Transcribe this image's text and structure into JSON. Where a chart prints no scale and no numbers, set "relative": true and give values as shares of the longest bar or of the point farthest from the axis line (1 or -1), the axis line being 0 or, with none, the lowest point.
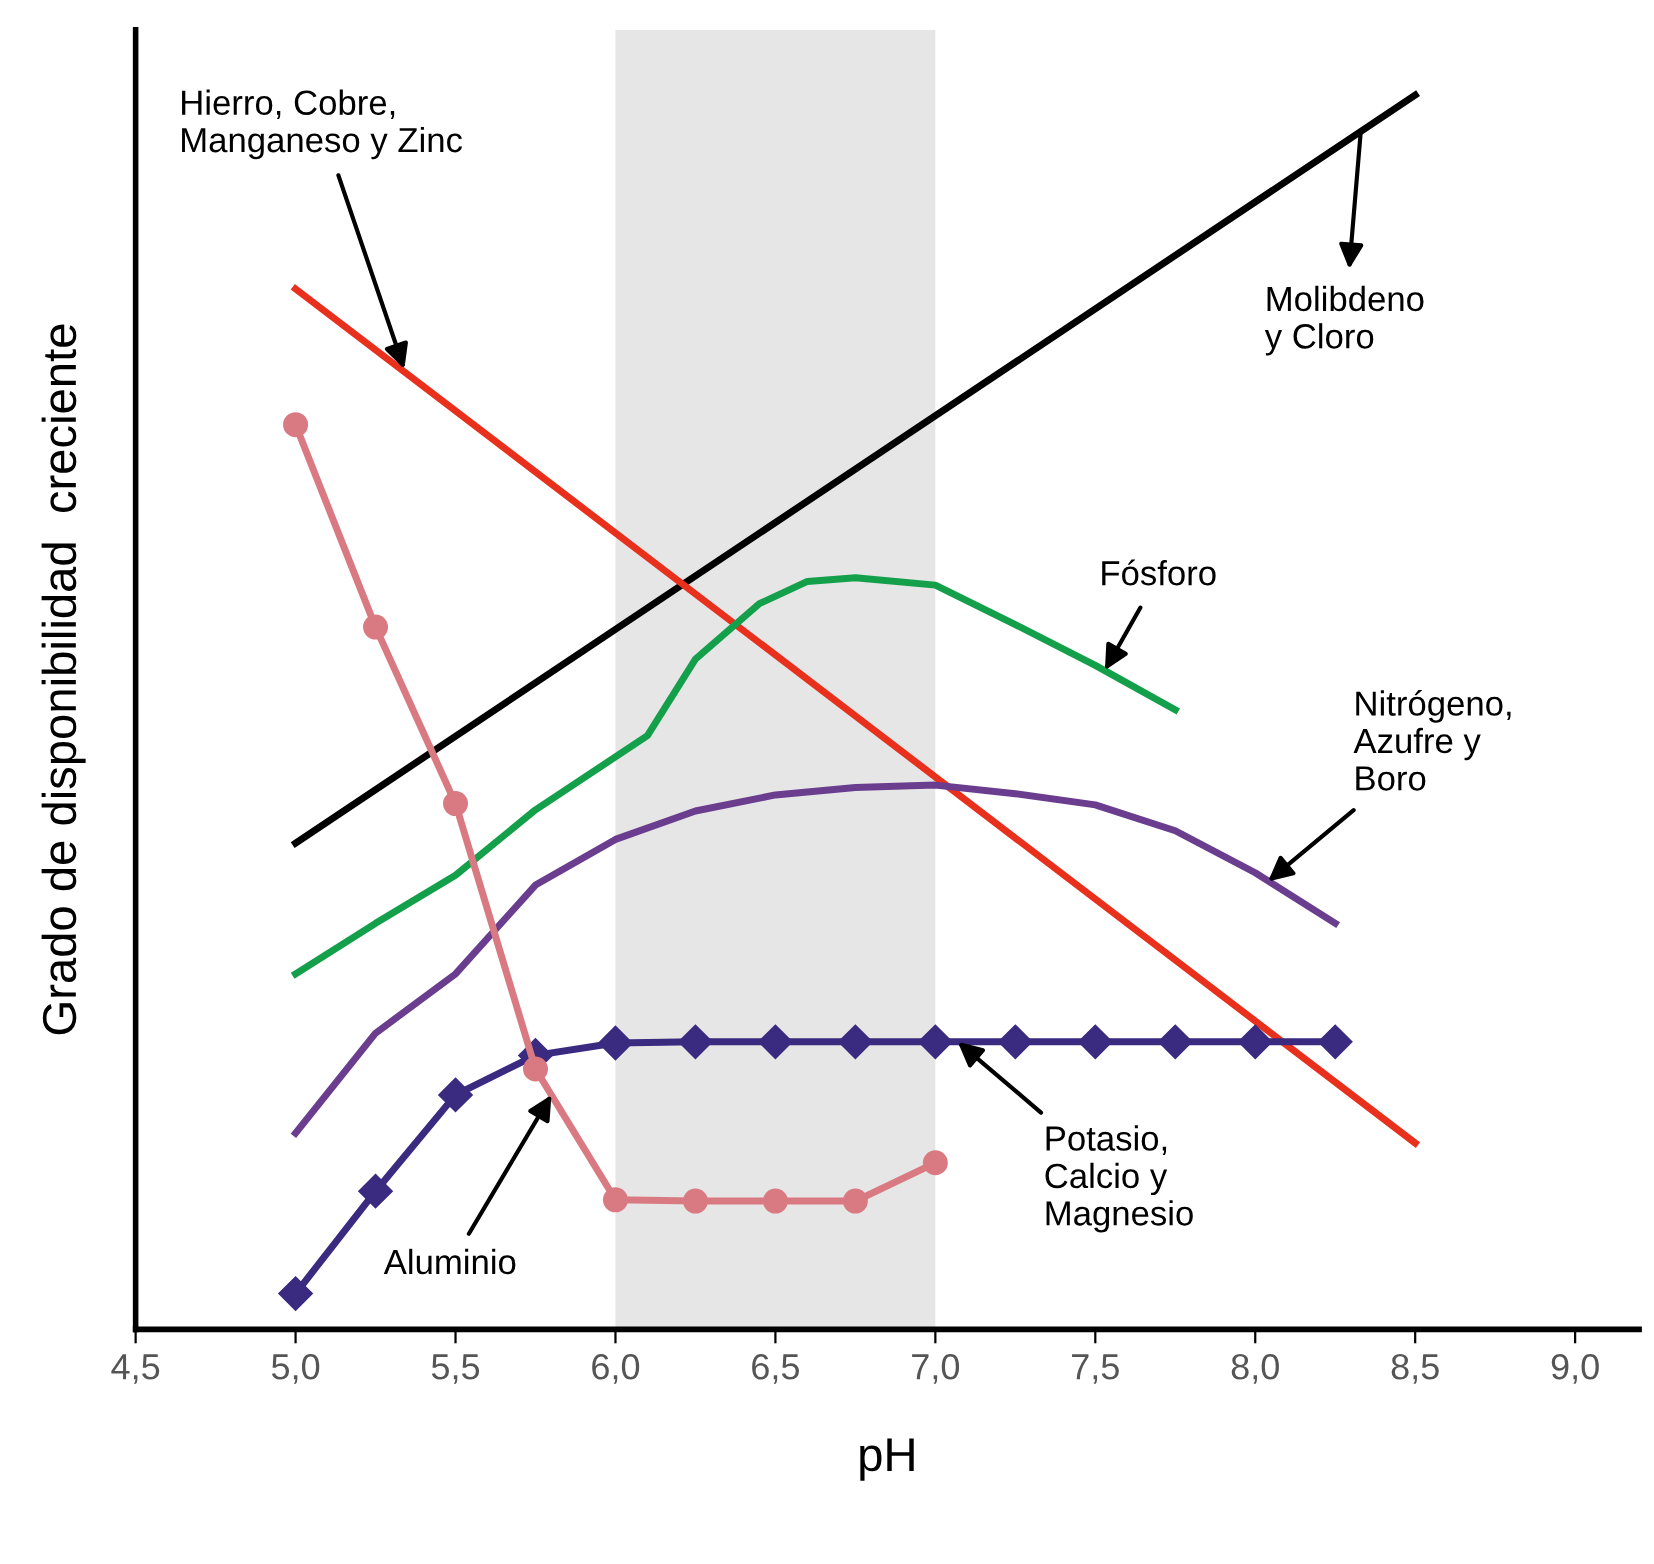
{
  "chart_data": {
    "type": "line",
    "relative": true,
    "xlabel": "pH",
    "ylabel": "Grado de disponibilidad  creciente",
    "xlim": [
      4.5,
      9.2
    ],
    "xticks": [
      {
        "value": 4.5,
        "label": "4,5"
      },
      {
        "value": 5.0,
        "label": "5,0"
      },
      {
        "value": 5.5,
        "label": "5,5"
      },
      {
        "value": 6.0,
        "label": "6,0"
      },
      {
        "value": 6.5,
        "label": "6,5"
      },
      {
        "value": 7.0,
        "label": "7,0"
      },
      {
        "value": 7.5,
        "label": "7,5"
      },
      {
        "value": 8.0,
        "label": "8,0"
      },
      {
        "value": 8.5,
        "label": "8,5"
      },
      {
        "value": 9.0,
        "label": "9,0"
      }
    ],
    "grid": false,
    "bands": [
      {
        "axis": "x",
        "from": 6.0,
        "to": 7.0,
        "color": "#e6e6e6"
      }
    ],
    "series": [
      {
        "color": "#000000",
        "x": [
          5.0,
          8.5
        ],
        "values": [
          0.394,
          1.0
        ],
        "marker": "none"
      },
      {
        "color": "#e8301c",
        "x": [
          5.0,
          8.5
        ],
        "values": [
          0.843,
          0.151
        ],
        "marker": "none"
      },
      {
        "color": "#14a04a",
        "x": [
          5.0,
          5.25,
          5.5,
          5.75,
          6.1,
          6.25,
          6.45,
          6.6,
          6.75,
          7.0,
          7.25,
          7.5,
          7.75
        ],
        "values": [
          0.288,
          0.329,
          0.368,
          0.421,
          0.481,
          0.543,
          0.588,
          0.606,
          0.609,
          0.603,
          0.571,
          0.538,
          0.502
        ],
        "marker": "none"
      },
      {
        "color": "#6a3d8f",
        "x": [
          5.0,
          5.25,
          5.5,
          5.75,
          6.0,
          6.25,
          6.5,
          6.75,
          7.0,
          7.25,
          7.5,
          7.75,
          8.0,
          8.25
        ],
        "values": [
          0.159,
          0.24,
          0.288,
          0.36,
          0.397,
          0.42,
          0.433,
          0.439,
          0.441,
          0.434,
          0.425,
          0.404,
          0.37,
          0.329
        ],
        "marker": "none"
      },
      {
        "color": "#3a2a80",
        "x": [
          5.0,
          5.25,
          5.5,
          5.75,
          6.0,
          6.25,
          6.5,
          6.75,
          7.0,
          7.25,
          7.5,
          7.75,
          8.0,
          8.25
        ],
        "values": [
          0.029,
          0.112,
          0.19,
          0.222,
          0.232,
          0.233,
          0.233,
          0.233,
          0.233,
          0.233,
          0.233,
          0.233,
          0.233,
          0.233
        ],
        "marker": "diamond"
      },
      {
        "color": "#d97a82",
        "x": [
          5.0,
          5.25,
          5.5,
          5.75,
          6.0,
          6.25,
          6.5,
          6.75,
          7.0
        ],
        "values": [
          0.733,
          0.569,
          0.426,
          0.211,
          0.105,
          0.104,
          0.104,
          0.104,
          0.135
        ],
        "marker": "circle"
      }
    ],
    "annotations": [
      {
        "text": "Hierro, Cobre,\nManganeso y Zinc",
        "x": 5.34,
        "y": 0.778
      },
      {
        "text": "Molibdeno\ny Cloro",
        "x": 8.33,
        "y": 0.971
      },
      {
        "text": "Fósforo",
        "x": 7.53,
        "y": 0.534
      },
      {
        "text": "Nitrógeno,\nAzufre y\nBoro",
        "x": 8.04,
        "y": 0.363
      },
      {
        "text": "Potasio,\nCalcio y\nMagnesio",
        "x": 7.07,
        "y": 0.233
      },
      {
        "text": "Aluminio",
        "x": 5.8,
        "y": 0.19
      }
    ]
  }
}
